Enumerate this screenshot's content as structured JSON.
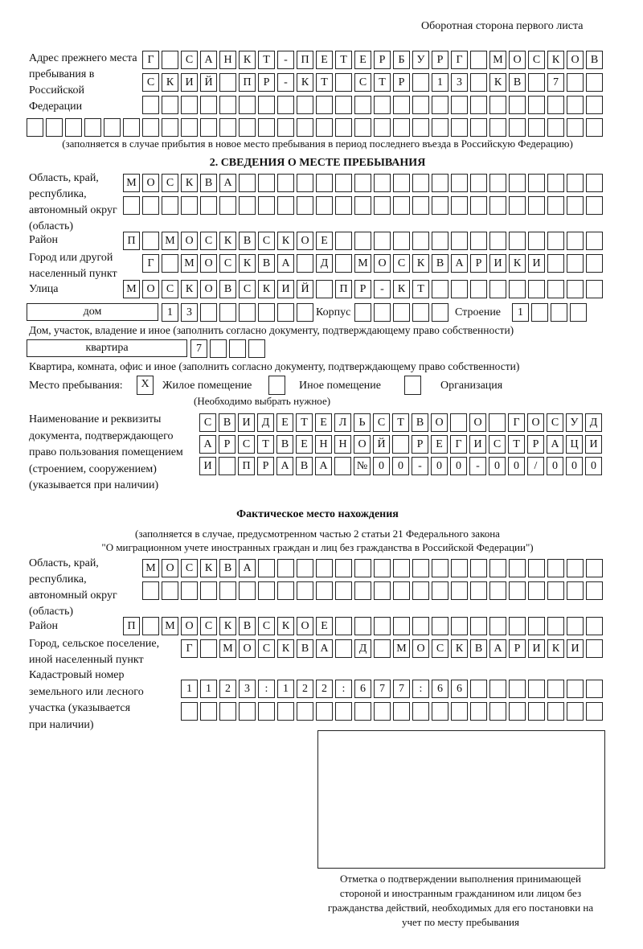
{
  "header": "Оборотная сторона первого листа",
  "prev_address": {
    "label": "Адрес прежнего места пребывания в Российской Федерации",
    "rows": [
      [
        "Г",
        "",
        "С",
        "А",
        "Н",
        "К",
        "Т",
        "-",
        "П",
        "Е",
        "Т",
        "Е",
        "Р",
        "Б",
        "У",
        "Р",
        "Г",
        "",
        "М",
        "О",
        "С",
        "К",
        "О",
        "В"
      ],
      [
        "С",
        "К",
        "И",
        "Й",
        "",
        "П",
        "Р",
        "-",
        "К",
        "Т",
        "",
        "С",
        "Т",
        "Р",
        "",
        "1",
        "3",
        "",
        "К",
        "В",
        "",
        "7",
        "",
        ""
      ],
      [
        "",
        "",
        "",
        "",
        "",
        "",
        "",
        "",
        "",
        "",
        "",
        "",
        "",
        "",
        "",
        "",
        "",
        "",
        "",
        "",
        "",
        "",
        "",
        ""
      ],
      [
        "",
        "",
        "",
        "",
        "",
        "",
        "",
        "",
        "",
        "",
        "",
        "",
        "",
        "",
        "",
        "",
        "",
        "",
        "",
        "",
        "",
        "",
        "",
        "",
        "",
        "",
        "",
        "",
        "",
        ""
      ]
    ],
    "note": "(заполняется в случае прибытия в новое место пребывания в период последнего въезда в Российскую Федерацию)"
  },
  "section2": {
    "title": "2. СВЕДЕНИЯ О МЕСТЕ ПРЕБЫВАНИЯ",
    "region_label": "Область, край, республика, автономный округ (область)",
    "region_rows": [
      [
        "М",
        "О",
        "С",
        "К",
        "В",
        "А",
        "",
        "",
        "",
        "",
        "",
        "",
        "",
        "",
        "",
        "",
        "",
        "",
        "",
        "",
        "",
        "",
        "",
        "",
        ""
      ],
      [
        "",
        "",
        "",
        "",
        "",
        "",
        "",
        "",
        "",
        "",
        "",
        "",
        "",
        "",
        "",
        "",
        "",
        "",
        "",
        "",
        "",
        "",
        "",
        "",
        ""
      ]
    ],
    "district_label": "Район",
    "district": [
      "П",
      "",
      "М",
      "О",
      "С",
      "К",
      "В",
      "С",
      "К",
      "О",
      "Е",
      "",
      "",
      "",
      "",
      "",
      "",
      "",
      "",
      "",
      "",
      "",
      "",
      "",
      ""
    ],
    "city_label": "Город или другой населенный пункт",
    "city": [
      "Г",
      "",
      "М",
      "О",
      "С",
      "К",
      "В",
      "А",
      "",
      "Д",
      "",
      "М",
      "О",
      "С",
      "К",
      "В",
      "А",
      "Р",
      "И",
      "К",
      "И",
      "",
      "",
      ""
    ],
    "street_label": "Улица",
    "street": [
      "М",
      "О",
      "С",
      "К",
      "О",
      "В",
      "С",
      "К",
      "И",
      "Й",
      "",
      "П",
      "Р",
      "-",
      "К",
      "Т",
      "",
      "",
      "",
      "",
      "",
      "",
      "",
      "",
      ""
    ],
    "house_type": "дом",
    "house": [
      "1",
      "3",
      "",
      "",
      "",
      "",
      "",
      ""
    ],
    "korpus_label": "Корпус",
    "korpus": [
      "",
      "",
      "",
      "",
      ""
    ],
    "building_label": "Строение",
    "building": [
      "1",
      "",
      "",
      ""
    ],
    "house_note": "Дом, участок, владение и иное (заполнить согласно документу, подтверждающему право собственности)",
    "flat_type": "квартира",
    "flat": [
      "7",
      "",
      "",
      ""
    ],
    "flat_note": "Квартира, комната, офис и иное (заполнить согласно документу, подтверждающему право собственности)",
    "place_label": "Место пребывания:",
    "opt1_mark": "X",
    "opt1": "Жилое помещение",
    "opt2_mark": "",
    "opt2": "Иное помещение",
    "opt3_mark": "",
    "opt3": "Организация",
    "choose_note": "(Необходимо выбрать нужное)",
    "doc_label": "Наименование и реквизиты документа, подтверждающего право пользования помещением (строением, сооружением) (указывается при наличии)",
    "doc_rows": [
      [
        "С",
        "В",
        "И",
        "Д",
        "Е",
        "Т",
        "Е",
        "Л",
        "Ь",
        "С",
        "Т",
        "В",
        "О",
        "",
        "О",
        "",
        "Г",
        "О",
        "С",
        "У",
        "Д"
      ],
      [
        "А",
        "Р",
        "С",
        "Т",
        "В",
        "Е",
        "Н",
        "Н",
        "О",
        "Й",
        "",
        "Р",
        "Е",
        "Г",
        "И",
        "С",
        "Т",
        "Р",
        "А",
        "Ц",
        "И"
      ],
      [
        "И",
        "",
        "П",
        "Р",
        "А",
        "В",
        "А",
        "",
        "№",
        "0",
        "0",
        "-",
        "0",
        "0",
        "-",
        "0",
        "0",
        "/",
        "0",
        "0",
        "0"
      ]
    ]
  },
  "actual": {
    "title": "Фактическое место нахождения",
    "note1": "(заполняется в случае, предусмотренном частью 2 статьи 21 Федерального закона",
    "note2": "\"О миграционном учете иностранных граждан и лиц без гражданства в Российской Федерации\")",
    "region_label": "Область, край, республика, автономный округ (область)",
    "region_rows": [
      [
        "М",
        "О",
        "С",
        "К",
        "В",
        "А",
        "",
        "",
        "",
        "",
        "",
        "",
        "",
        "",
        "",
        "",
        "",
        "",
        "",
        "",
        "",
        "",
        "",
        ""
      ],
      [
        "",
        "",
        "",
        "",
        "",
        "",
        "",
        "",
        "",
        "",
        "",
        "",
        "",
        "",
        "",
        "",
        "",
        "",
        "",
        "",
        "",
        "",
        "",
        ""
      ]
    ],
    "district_label": "Район",
    "district": [
      "П",
      "",
      "М",
      "О",
      "С",
      "К",
      "В",
      "С",
      "К",
      "О",
      "Е",
      "",
      "",
      "",
      "",
      "",
      "",
      "",
      "",
      "",
      "",
      "",
      "",
      "",
      ""
    ],
    "city_label": "Город, сельское поселение, иной населенный пункт",
    "city": [
      "Г",
      "",
      "М",
      "О",
      "С",
      "К",
      "В",
      "А",
      "",
      "Д",
      "",
      "М",
      "О",
      "С",
      "К",
      "В",
      "А",
      "Р",
      "И",
      "К",
      "И",
      ""
    ],
    "cadastre_label": "Кадастровый номер земельного или лесного участка (указывается при наличии)",
    "cadastre_rows": [
      [
        "1",
        "1",
        "2",
        "3",
        ":",
        "1",
        "2",
        "2",
        ":",
        "6",
        "7",
        "7",
        ":",
        "6",
        "6",
        "",
        "",
        "",
        "",
        "",
        "",
        ""
      ],
      [
        "",
        "",
        "",
        "",
        "",
        "",
        "",
        "",
        "",
        "",
        "",
        "",
        "",
        "",
        "",
        "",
        "",
        "",
        "",
        "",
        "",
        ""
      ]
    ],
    "stamp_caption": "Отметка о подтверждении выполнения принимающей стороной и иностранным гражданином или лицом без гражданства действий, необходимых для его постановки на учет по месту пребывания"
  }
}
